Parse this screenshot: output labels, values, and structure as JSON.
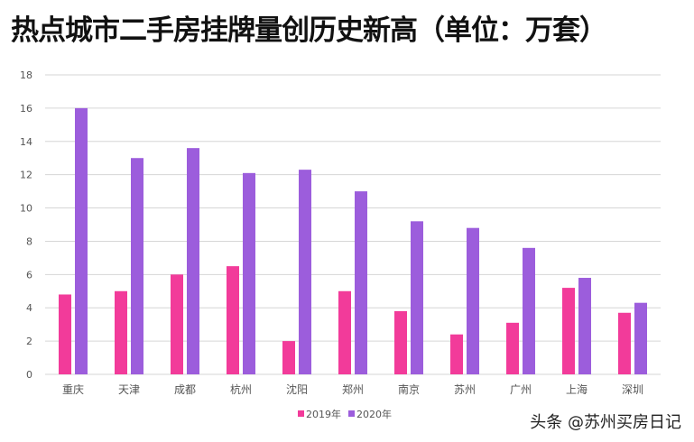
{
  "chart_data": {
    "type": "bar",
    "title": "热点城市二手房挂牌量创历史新高（单位：万套）",
    "categories": [
      "重庆",
      "天津",
      "成都",
      "杭州",
      "沈阳",
      "郑州",
      "南京",
      "苏州",
      "广州",
      "上海",
      "深圳"
    ],
    "series": [
      {
        "name": "2019年",
        "color": "#f23b9a",
        "values": [
          4.8,
          5,
          6,
          6.5,
          2,
          5,
          3.8,
          2.4,
          3.1,
          5.2,
          3.7
        ]
      },
      {
        "name": "2020年",
        "color": "#9c5ddc",
        "values": [
          16,
          13,
          13.6,
          12.1,
          12.3,
          11,
          9.2,
          8.8,
          7.6,
          5.8,
          4.3
        ]
      }
    ],
    "ylim": [
      0,
      18
    ],
    "yticks": [
      0,
      2,
      4,
      6,
      8,
      10,
      12,
      14,
      16,
      18
    ],
    "grid": true,
    "legend": "bottom"
  },
  "watermark": "头条 @苏州买房日记"
}
